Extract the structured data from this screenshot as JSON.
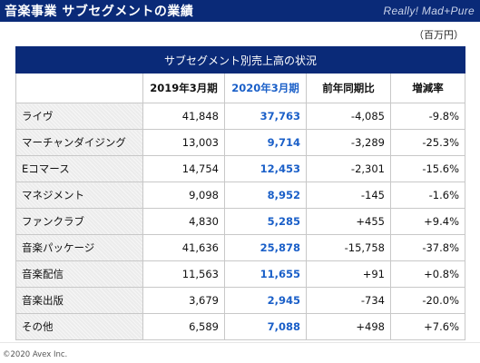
{
  "header": {
    "title": "音楽事業 サブセグメントの業績",
    "brand": "Really! Mad+Pure"
  },
  "unit": "（百万円）",
  "table": {
    "caption": "サブセグメント別売上高の状況",
    "columns": [
      "",
      "2019年3月期",
      "2020年3月期",
      "前年同期比",
      "増減率"
    ],
    "rows": [
      {
        "name": "ライヴ",
        "fy2019": "41,848",
        "fy2020": "37,763",
        "diff": "-4,085",
        "rate": "-9.8%"
      },
      {
        "name": "マーチャンダイジング",
        "fy2019": "13,003",
        "fy2020": "9,714",
        "diff": "-3,289",
        "rate": "-25.3%"
      },
      {
        "name": "Eコマース",
        "fy2019": "14,754",
        "fy2020": "12,453",
        "diff": "-2,301",
        "rate": "-15.6%"
      },
      {
        "name": "マネジメント",
        "fy2019": "9,098",
        "fy2020": "8,952",
        "diff": "-145",
        "rate": "-1.6%"
      },
      {
        "name": "ファンクラブ",
        "fy2019": "4,830",
        "fy2020": "5,285",
        "diff": "+455",
        "rate": "+9.4%"
      },
      {
        "name": "音楽パッケージ",
        "fy2019": "41,636",
        "fy2020": "25,878",
        "diff": "-15,758",
        "rate": "-37.8%"
      },
      {
        "name": "音楽配信",
        "fy2019": "11,563",
        "fy2020": "11,655",
        "diff": "+91",
        "rate": "+0.8%"
      },
      {
        "name": "音楽出版",
        "fy2019": "3,679",
        "fy2020": "2,945",
        "diff": "-734",
        "rate": "-20.0%"
      },
      {
        "name": "その他",
        "fy2019": "6,589",
        "fy2020": "7,088",
        "diff": "+498",
        "rate": "+7.6%"
      }
    ]
  },
  "footer": "©2020 Avex Inc.",
  "colors": {
    "header_bg": "#0a2a78",
    "highlight_text": "#1a5fc8"
  }
}
